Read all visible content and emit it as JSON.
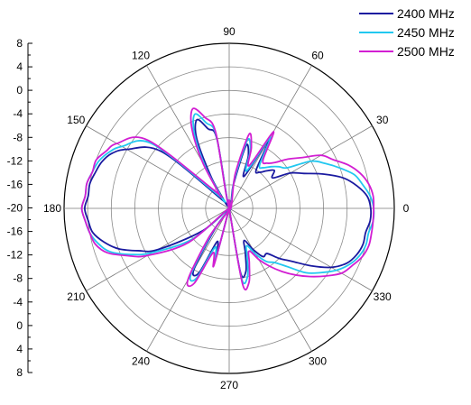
{
  "chart_data": {
    "type": "polar-line",
    "title": "",
    "angle_labels": [
      "0",
      "30",
      "60",
      "90",
      "120",
      "150",
      "180",
      "210",
      "240",
      "270",
      "300",
      "330"
    ],
    "angle_values_deg": [
      0,
      30,
      60,
      90,
      120,
      150,
      180,
      210,
      240,
      270,
      300,
      330
    ],
    "radial_tick_labels": [
      "8",
      "4",
      "0",
      "-4",
      "-8",
      "-12",
      "-16",
      "-20",
      "-16",
      "-12",
      "-8",
      "-4",
      "0",
      "4",
      "8"
    ],
    "radial_range": [
      -20,
      8
    ],
    "grid": true,
    "legend_position": "top-right",
    "series": [
      {
        "name": "2400 MHz",
        "color": "#1a1aa0",
        "angles_deg": [
          0,
          5,
          10,
          15,
          20,
          25,
          30,
          35,
          40,
          45,
          50,
          55,
          60,
          65,
          70,
          75,
          80,
          90,
          100,
          105,
          110,
          115,
          120,
          125,
          130,
          140,
          150,
          155,
          160,
          165,
          170,
          175,
          180,
          185,
          190,
          195,
          200,
          205,
          210,
          220,
          230,
          235,
          240,
          245,
          250,
          255,
          260,
          270,
          280,
          285,
          290,
          295,
          300,
          305,
          310,
          315,
          320,
          325,
          330,
          335,
          340,
          345,
          350,
          355
        ],
        "gain_db": [
          4,
          3.5,
          2,
          0,
          -3,
          -6,
          -8,
          -11,
          -10,
          -11,
          -12,
          -12,
          -6.5,
          -14,
          -10.5,
          -9,
          -16,
          -20,
          -8,
          -6,
          -4,
          -7,
          -14,
          -19,
          -18,
          -5,
          0,
          2,
          3,
          3.5,
          4,
          4,
          4.5,
          4,
          3.5,
          2,
          0,
          -3,
          -6,
          -14,
          -20,
          -16,
          -8,
          -8,
          -14,
          -12,
          -20,
          -20,
          -9,
          -9,
          -12,
          -14,
          -12,
          -10,
          -10,
          -8,
          -6,
          -3,
          0,
          2,
          3,
          3.5,
          3.5,
          4
        ]
      },
      {
        "name": "2450 MHz",
        "color": "#22c8f0",
        "angles_deg": [
          0,
          5,
          10,
          15,
          20,
          25,
          30,
          35,
          40,
          45,
          50,
          55,
          60,
          65,
          70,
          75,
          80,
          90,
          100,
          105,
          110,
          115,
          120,
          125,
          130,
          140,
          150,
          155,
          160,
          165,
          170,
          175,
          180,
          185,
          190,
          195,
          200,
          205,
          210,
          220,
          230,
          235,
          240,
          245,
          250,
          255,
          260,
          270,
          280,
          285,
          290,
          295,
          300,
          305,
          310,
          315,
          320,
          325,
          330,
          335,
          340,
          345,
          350,
          355
        ],
        "gain_db": [
          4.5,
          4,
          3,
          2,
          0,
          -2,
          -4,
          -8,
          -9,
          -10,
          -11,
          -11,
          -6,
          -13,
          -9.5,
          -8,
          -15,
          -20,
          -7.5,
          -5,
          -3,
          -6,
          -12,
          -18,
          -17,
          -3,
          1,
          2.5,
          3.5,
          4,
          4.5,
          4.5,
          5,
          4.5,
          4,
          3,
          1.5,
          -1.5,
          -5,
          -12,
          -20,
          -15,
          -7,
          -7,
          -13,
          -11,
          -20,
          -20,
          -8,
          -8,
          -11,
          -13,
          -11,
          -9,
          -8,
          -6,
          -3,
          -1,
          1,
          2.5,
          3.5,
          4,
          4,
          4.5
        ]
      },
      {
        "name": "2500 MHz",
        "color": "#d21ed2",
        "angles_deg": [
          0,
          5,
          10,
          15,
          20,
          25,
          30,
          35,
          40,
          45,
          50,
          55,
          60,
          65,
          70,
          75,
          80,
          90,
          100,
          105,
          110,
          115,
          120,
          125,
          130,
          140,
          150,
          155,
          160,
          165,
          170,
          175,
          180,
          185,
          190,
          195,
          200,
          205,
          210,
          220,
          230,
          235,
          240,
          245,
          250,
          255,
          260,
          270,
          280,
          285,
          290,
          295,
          300,
          305,
          310,
          315,
          320,
          325,
          330,
          335,
          340,
          345,
          350,
          355
        ],
        "gain_db": [
          4.5,
          4.5,
          4,
          3,
          1.5,
          -0.5,
          -2,
          -5,
          -7,
          -9,
          -10,
          -10,
          -5,
          -12,
          -9,
          -7,
          -14,
          -20,
          -7,
          -4,
          -2,
          -5,
          -11,
          -17,
          -16,
          -2,
          2,
          3,
          4,
          4,
          4.5,
          4.5,
          5,
          4.5,
          4,
          3.5,
          2,
          -1,
          -4,
          -11,
          -20,
          -14,
          -6,
          -6,
          -12,
          -10,
          -20,
          -20,
          -7,
          -7,
          -10,
          -12,
          -10,
          -8,
          -6,
          -4,
          -2,
          0,
          2,
          3,
          4,
          4.5,
          4.5,
          4.5
        ]
      }
    ]
  }
}
